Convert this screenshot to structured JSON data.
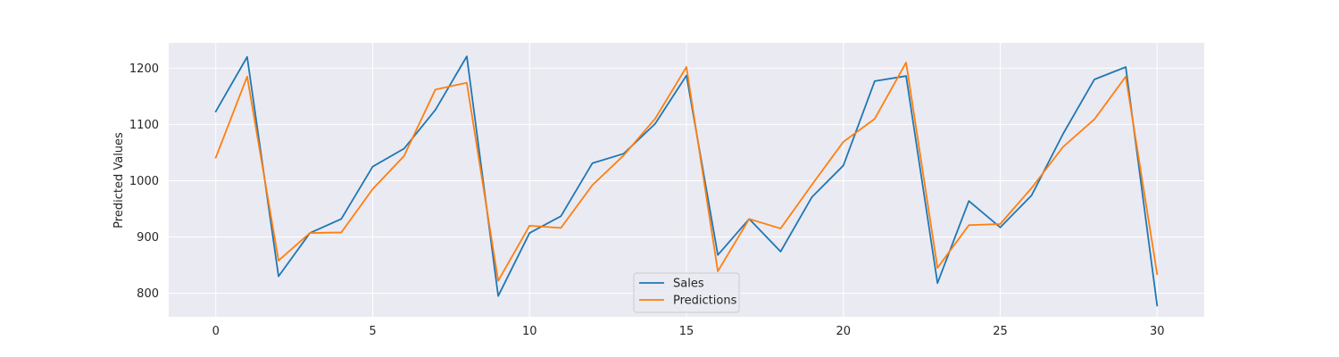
{
  "chart_data": {
    "type": "line",
    "title": "",
    "xlabel": "",
    "ylabel": "Predicted Values",
    "xlim": [
      -1.5,
      31.5
    ],
    "ylim": [
      758,
      1245
    ],
    "x_ticks": [
      0,
      5,
      10,
      15,
      20,
      25,
      30
    ],
    "y_ticks": [
      800,
      900,
      1000,
      1100,
      1200
    ],
    "grid": true,
    "legend_position": "lower-center",
    "x": [
      0,
      1,
      2,
      3,
      4,
      5,
      6,
      7,
      8,
      9,
      10,
      11,
      12,
      13,
      14,
      15,
      16,
      17,
      18,
      19,
      20,
      21,
      22,
      23,
      24,
      25,
      26,
      27,
      28,
      29,
      30
    ],
    "series": [
      {
        "name": "Sales",
        "color": "#1f77b4",
        "values": [
          1123,
          1220,
          830,
          907,
          932,
          1025,
          1057,
          1126,
          1221,
          795,
          907,
          937,
          1031,
          1048,
          1101,
          1187,
          868,
          932,
          874,
          971,
          1027,
          1177,
          1186,
          818,
          964,
          917,
          974,
          1083,
          1180,
          1202,
          778
        ]
      },
      {
        "name": "Predictions",
        "color": "#ff7f0e",
        "values": [
          1041,
          1185,
          858,
          907,
          908,
          985,
          1044,
          1162,
          1174,
          822,
          920,
          916,
          992,
          1045,
          1110,
          1202,
          839,
          932,
          915,
          993,
          1069,
          1110,
          1210,
          845,
          921,
          923,
          987,
          1060,
          1109,
          1185,
          834
        ]
      }
    ],
    "background_color": "#eaeaf2",
    "grid_color": "#ffffff"
  }
}
